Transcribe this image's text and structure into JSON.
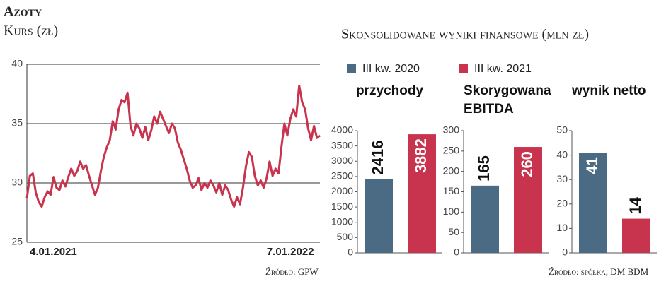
{
  "chart_data": [
    {
      "type": "line",
      "title": "Azoty",
      "subtitle": "Kurs (zł)",
      "source": "Źródło: GPW",
      "categories": [
        "4.01.2021",
        null,
        null,
        null,
        null,
        null,
        null,
        null,
        null,
        null,
        null,
        null,
        null,
        null,
        null,
        null,
        null,
        null,
        null,
        null,
        null,
        null,
        null,
        null,
        null,
        null,
        null,
        null,
        null,
        null,
        null,
        null,
        null,
        null,
        null,
        null,
        null,
        null,
        null,
        null,
        null,
        null,
        null,
        null,
        null,
        null,
        null,
        null,
        null,
        null,
        null,
        null,
        null,
        null,
        null,
        null,
        null,
        null,
        null,
        null,
        null,
        null,
        null,
        null,
        null,
        null,
        null,
        null,
        null,
        null,
        null,
        null,
        null,
        null,
        null,
        null,
        null,
        null,
        null,
        null,
        null,
        null,
        null,
        null,
        null,
        null,
        null,
        null,
        null,
        "7.01.2022",
        null,
        null,
        null,
        null,
        null,
        null,
        null,
        null,
        null,
        null
      ],
      "values": [
        28.7,
        30.6,
        30.8,
        29.2,
        28.4,
        28.0,
        28.8,
        29.3,
        29.0,
        30.5,
        29.6,
        29.4,
        30.2,
        29.7,
        30.5,
        31.2,
        30.6,
        31.0,
        31.8,
        31.2,
        31.5,
        30.6,
        29.8,
        29.0,
        29.6,
        31.0,
        32.2,
        33.0,
        33.6,
        35.2,
        34.5,
        36.2,
        37.0,
        36.8,
        37.6,
        34.8,
        34.0,
        35.0,
        34.6,
        33.8,
        34.7,
        33.6,
        34.4,
        35.6,
        35.0,
        36.0,
        35.4,
        34.8,
        34.2,
        35.0,
        34.6,
        33.4,
        32.8,
        32.0,
        31.2,
        30.2,
        29.6,
        29.8,
        30.4,
        29.4,
        30.0,
        29.6,
        30.2,
        29.8,
        29.2,
        30.0,
        29.0,
        29.8,
        29.4,
        28.6,
        28.0,
        28.8,
        28.2,
        29.6,
        31.4,
        32.6,
        32.2,
        30.6,
        29.8,
        30.2,
        29.6,
        30.4,
        31.8,
        30.6,
        31.2,
        30.8,
        33.0,
        35.0,
        34.0,
        35.4,
        36.2,
        35.6,
        38.2,
        36.8,
        36.2,
        34.6,
        33.6,
        34.8,
        33.8,
        34.0
      ],
      "color": "#c8334d",
      "ylim": [
        25,
        40
      ],
      "yticks": [
        25,
        30,
        35,
        40
      ],
      "grid": true
    },
    {
      "type": "bar",
      "title": "przychody",
      "series": [
        {
          "name": "III kw. 2020",
          "color": "#4b6a84",
          "values": [
            2416
          ]
        },
        {
          "name": "III kw. 2021",
          "color": "#c8334d",
          "values": [
            3882
          ]
        }
      ],
      "ylim": [
        0,
        4000
      ],
      "yticks": [
        0,
        500,
        1000,
        1500,
        2000,
        2500,
        3000,
        3500,
        4000
      ]
    },
    {
      "type": "bar",
      "title": "Skorygowana EBITDA",
      "series": [
        {
          "color": "#4b6a84",
          "values": [
            165
          ]
        },
        {
          "color": "#c8334d",
          "values": [
            260
          ]
        }
      ],
      "ylim": [
        0,
        300
      ],
      "yticks": [
        0,
        50,
        100,
        150,
        200,
        250,
        300
      ]
    },
    {
      "type": "bar",
      "title": "wynik netto",
      "series": [
        {
          "color": "#4b6a84",
          "values": [
            41
          ]
        },
        {
          "color": "#c8334d",
          "values": [
            14
          ]
        }
      ],
      "ylim": [
        0,
        50
      ],
      "yticks": [
        0,
        10,
        20,
        30,
        40,
        50
      ]
    }
  ],
  "results_panel": {
    "title": "Skonsolidowane wyniki finansowe (mln zł)",
    "source": "Źródło: spółka, DM BDM"
  }
}
